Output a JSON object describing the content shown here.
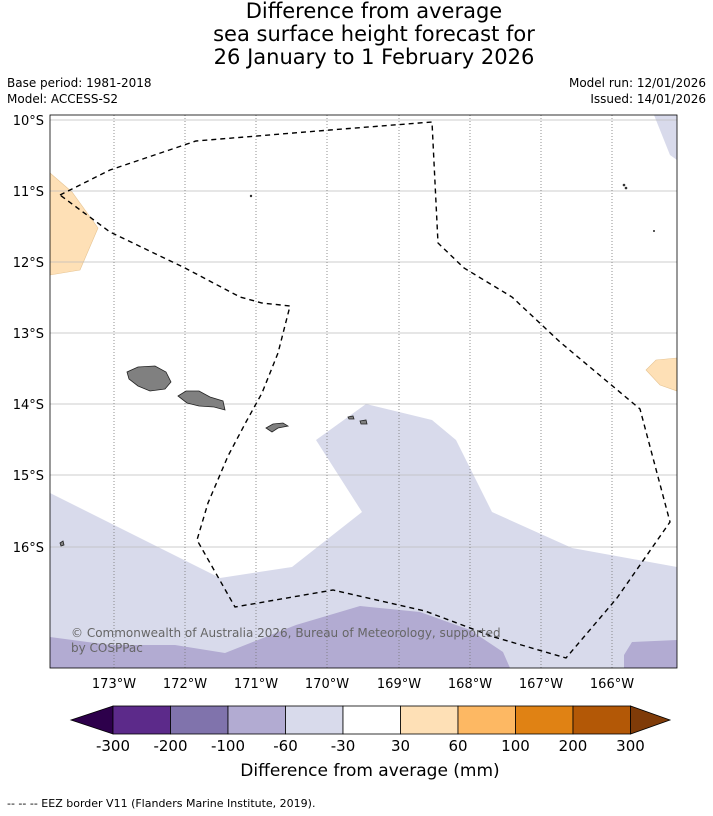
{
  "title": {
    "line1": "Difference from average",
    "line2": "sea surface height forecast for",
    "line3": "26 January to 1 February 2026"
  },
  "meta": {
    "base_period": "Base period: 1981-2018",
    "model": "Model: ACCESS-S2",
    "model_run": "Model run: 12/01/2026",
    "issued": "Issued: 14/01/2026"
  },
  "axes": {
    "lat_labels": [
      "10°S",
      "11°S",
      "12°S",
      "13°S",
      "14°S",
      "15°S",
      "16°S"
    ],
    "lon_labels": [
      "173°W",
      "172°W",
      "171°W",
      "170°W",
      "169°W",
      "168°W",
      "167°W",
      "166°W"
    ]
  },
  "colorbar": {
    "ticks": [
      "-300",
      "-200",
      "-100",
      "-60",
      "-30",
      "30",
      "60",
      "100",
      "200",
      "300"
    ],
    "colors": [
      "#2d004b",
      "#5c2a8a",
      "#8073ac",
      "#b2abd2",
      "#d8daeb",
      "#ffffff",
      "#fee0b6",
      "#fdb863",
      "#e08214",
      "#b35806",
      "#7f3b08"
    ],
    "label": "Difference from average (mm)"
  },
  "copyright": "© Commonwealth of Australia 2026, Bureau of Meteorology, supported by COSPPac",
  "footer": "--  --  -- EEZ border V11 (Flanders Marine Institute, 2019)."
}
